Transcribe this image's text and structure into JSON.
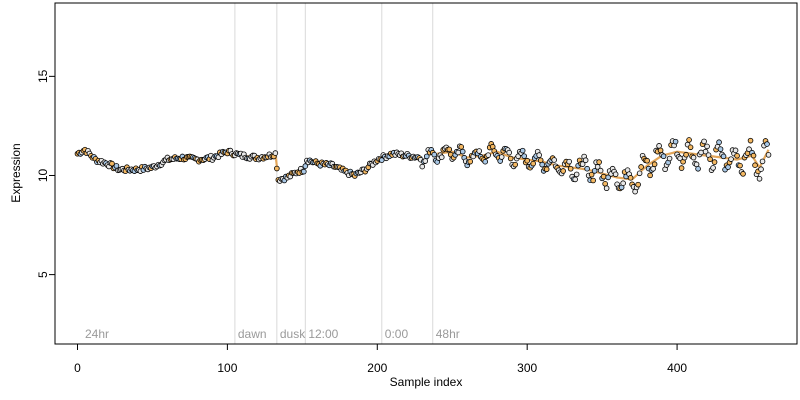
{
  "chart_data": {
    "type": "scatter",
    "title": "",
    "xlabel": "Sample index",
    "ylabel": "Expression",
    "xlim": [
      -15,
      480
    ],
    "ylim": [
      1.5,
      18.7
    ],
    "xticks": [
      0,
      100,
      200,
      300,
      400
    ],
    "yticks": [
      5,
      10,
      15
    ],
    "grid": false,
    "legend": "none",
    "colors": {
      "point_outline": "#000000",
      "point_orange": "#f4b862",
      "point_blue": "#a9c8e6",
      "point_white": "#e8e8e8",
      "trend_orange": "#e3a65a",
      "trend_blue": "#8fb1d6",
      "vline": "#d9d9d9"
    },
    "vertical_markers": [
      {
        "x": 3,
        "label": "24hr",
        "line": false
      },
      {
        "x": 105,
        "label": "dawn",
        "line": true
      },
      {
        "x": 133,
        "label": "dusk",
        "line": true
      },
      {
        "x": 152,
        "label": "12:00",
        "line": true
      },
      {
        "x": 203,
        "label": "0:00",
        "line": true
      },
      {
        "x": 237,
        "label": "48hr",
        "line": true
      }
    ],
    "profile": [
      [
        0,
        11.1
      ],
      [
        5,
        11.3
      ],
      [
        12,
        10.8
      ],
      [
        20,
        10.6
      ],
      [
        28,
        10.3
      ],
      [
        40,
        10.3
      ],
      [
        50,
        10.4
      ],
      [
        60,
        10.8
      ],
      [
        70,
        10.9
      ],
      [
        80,
        10.8
      ],
      [
        90,
        10.9
      ],
      [
        100,
        11.2
      ],
      [
        110,
        11.0
      ],
      [
        120,
        10.9
      ],
      [
        128,
        11.0
      ],
      [
        132,
        11.1
      ],
      [
        134,
        9.8
      ],
      [
        140,
        9.9
      ],
      [
        147,
        10.2
      ],
      [
        151,
        10.3
      ],
      [
        153,
        10.8
      ],
      [
        160,
        10.6
      ],
      [
        170,
        10.5
      ],
      [
        178,
        10.2
      ],
      [
        185,
        10.0
      ],
      [
        192,
        10.3
      ],
      [
        200,
        10.8
      ],
      [
        210,
        11.1
      ],
      [
        220,
        11.0
      ],
      [
        230,
        10.9
      ],
      [
        240,
        11.1
      ],
      [
        250,
        11.2
      ],
      [
        260,
        10.9
      ],
      [
        270,
        11.0
      ],
      [
        280,
        11.2
      ],
      [
        290,
        10.9
      ],
      [
        300,
        10.8
      ],
      [
        310,
        10.7
      ],
      [
        320,
        10.5
      ],
      [
        330,
        10.4
      ],
      [
        340,
        10.3
      ],
      [
        350,
        10.1
      ],
      [
        360,
        9.9
      ],
      [
        370,
        9.8
      ],
      [
        380,
        10.5
      ],
      [
        390,
        11.0
      ],
      [
        400,
        11.2
      ],
      [
        410,
        11.1
      ],
      [
        420,
        11.0
      ],
      [
        430,
        10.9
      ],
      [
        440,
        10.8
      ],
      [
        450,
        11.0
      ],
      [
        455,
        10.4
      ],
      [
        461,
        11.3
      ]
    ]
  }
}
